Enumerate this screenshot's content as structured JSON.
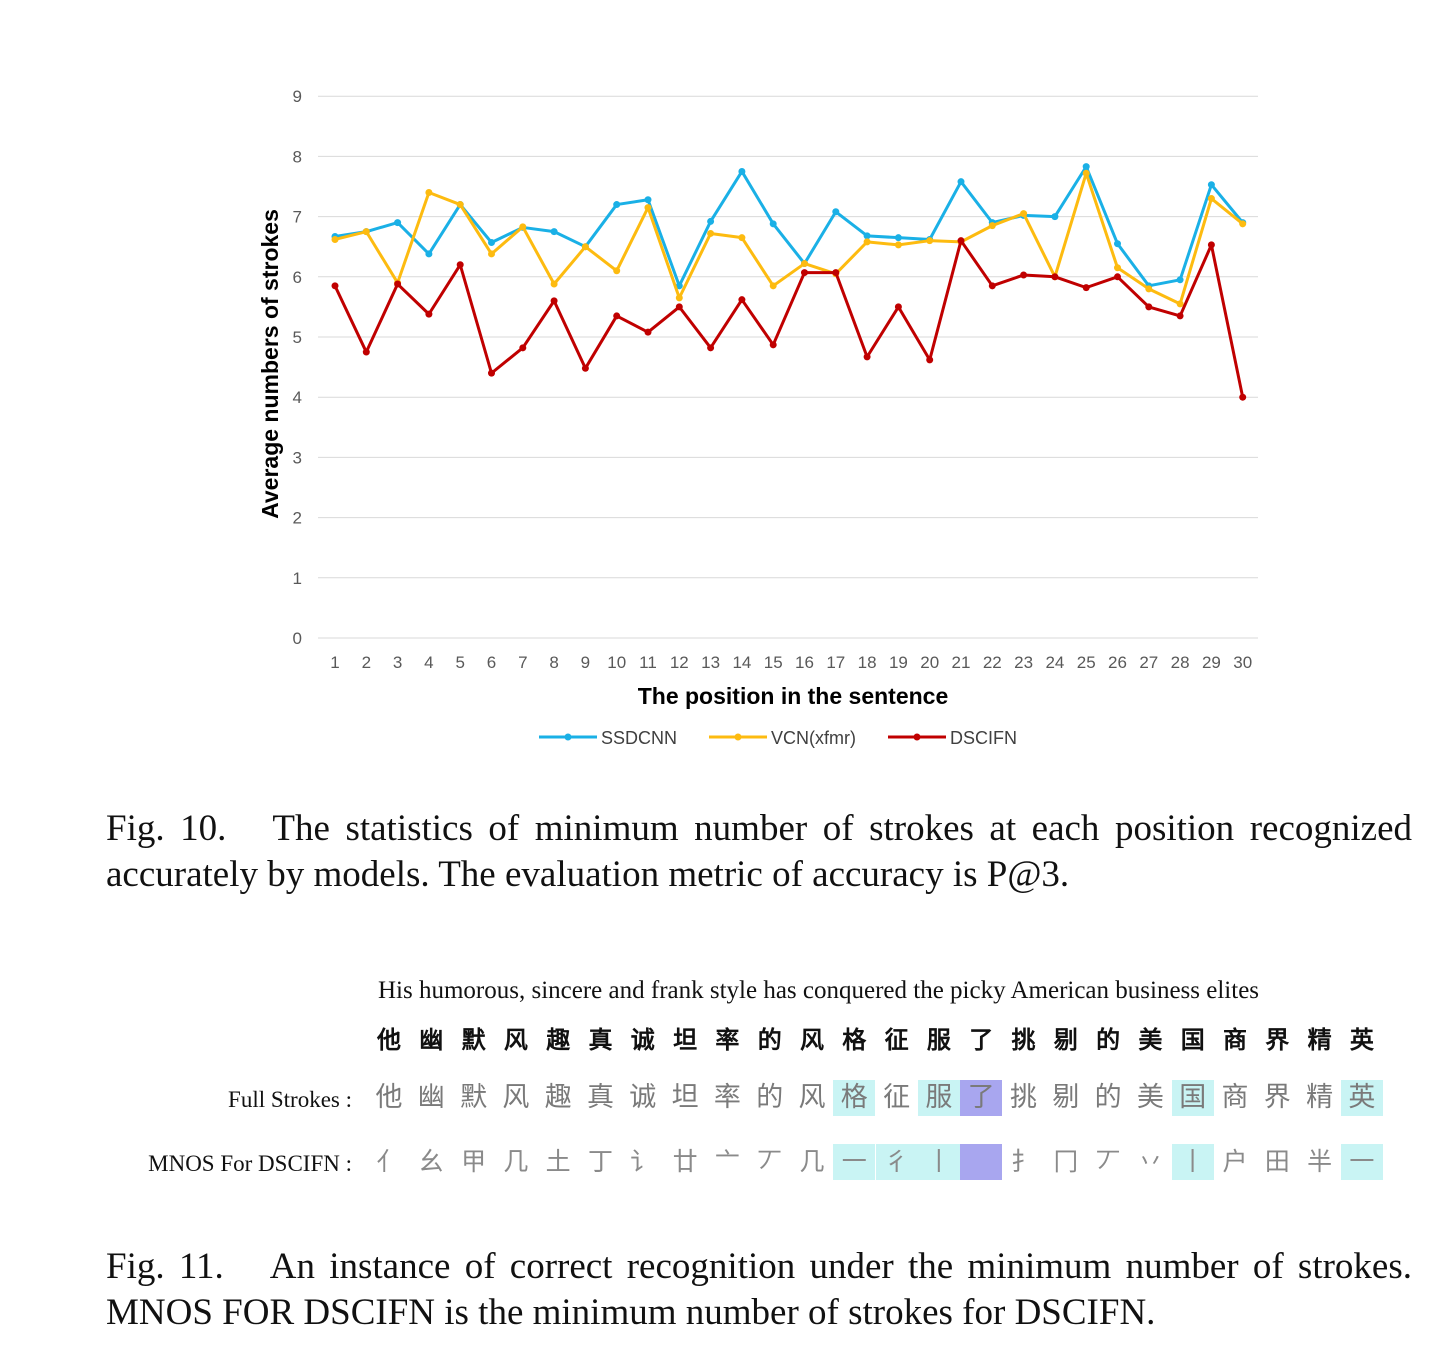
{
  "chart_data": {
    "type": "line",
    "xlabel": "The position in the sentence",
    "ylabel": "Average numbers of strokes",
    "x": [
      "1",
      "2",
      "3",
      "4",
      "5",
      "6",
      "7",
      "8",
      "9",
      "10",
      "11",
      "12",
      "13",
      "14",
      "15",
      "16",
      "17",
      "18",
      "19",
      "20",
      "21",
      "22",
      "23",
      "24",
      "25",
      "26",
      "27",
      "28",
      "29",
      "30"
    ],
    "yticks": [
      "0",
      "1",
      "2",
      "3",
      "4",
      "5",
      "6",
      "7",
      "8",
      "9"
    ],
    "ylim": [
      0,
      9
    ],
    "grid": true,
    "legend": "bottom",
    "series": [
      {
        "name": "SSDCNN",
        "color": "#1ab0e6",
        "values": [
          6.67,
          6.75,
          6.9,
          6.38,
          7.2,
          6.57,
          6.82,
          6.75,
          6.5,
          7.2,
          7.28,
          5.85,
          6.92,
          7.75,
          6.88,
          6.22,
          7.08,
          6.68,
          6.65,
          6.62,
          7.58,
          6.9,
          7.02,
          7.0,
          7.83,
          6.55,
          5.85,
          5.95,
          7.53,
          6.9
        ]
      },
      {
        "name": "VCN(xfmr)",
        "color": "#fdbb10",
        "values": [
          6.62,
          6.75,
          5.9,
          7.4,
          7.2,
          6.38,
          6.83,
          5.88,
          6.5,
          6.1,
          7.15,
          5.65,
          6.72,
          6.65,
          5.85,
          6.22,
          6.05,
          6.58,
          6.53,
          6.6,
          6.58,
          6.85,
          7.05,
          6.0,
          7.72,
          6.15,
          5.8,
          5.55,
          7.3,
          6.88
        ]
      },
      {
        "name": "DSCIFN",
        "color": "#c00000",
        "values": [
          5.85,
          4.75,
          5.88,
          5.38,
          6.2,
          4.4,
          4.82,
          5.6,
          4.48,
          5.35,
          5.08,
          5.5,
          4.82,
          5.62,
          4.87,
          6.07,
          6.07,
          4.67,
          5.5,
          4.62,
          6.6,
          5.85,
          6.03,
          6.0,
          5.82,
          6.0,
          5.5,
          5.35,
          6.53,
          4.0
        ]
      }
    ]
  },
  "caption10": {
    "label": "Fig. 10.",
    "text": "The statistics of minimum number of strokes at each position recognized accurately by models. The evaluation metric of accuracy is P@3."
  },
  "fig11": {
    "english": "His humorous, sincere and frank style has conquered the picky American business elites",
    "chinese": [
      "他",
      "幽",
      "默",
      "风",
      "趣",
      "真",
      "诚",
      "坦",
      "率",
      "的",
      "风",
      "格",
      "征",
      "服",
      "了",
      "挑",
      "剔",
      "的",
      "美",
      "国",
      "商",
      "界",
      "精",
      "英"
    ],
    "full_label": "Full Strokes :",
    "mnos_label": "MNOS For DSCIFN :",
    "full_strokes": [
      "他",
      "幽",
      "默",
      "风",
      "趣",
      "真",
      "诚",
      "坦",
      "率",
      "的",
      "风",
      "格",
      "征",
      "服",
      "了",
      "挑",
      "剔",
      "的",
      "美",
      "国",
      "商",
      "界",
      "精",
      "英"
    ],
    "mnos_strokes": [
      "亻",
      "幺",
      "甲",
      "几",
      "土",
      "丁",
      "讠",
      "廿",
      "亠",
      "丆",
      "几",
      "一",
      "彳",
      "丨",
      "",
      "扌",
      "冂",
      "丆",
      "丷",
      "丨",
      "户",
      "田",
      "半",
      "一"
    ],
    "cyan_highlight": "#c9f4f4",
    "purple_highlight": "#a8a6ef"
  },
  "caption11": {
    "label": "Fig. 11.",
    "text": "An instance of correct recognition under the minimum number of strokes. MNOS FOR DSCIFN is the minimum number of strokes for DSCIFN."
  }
}
